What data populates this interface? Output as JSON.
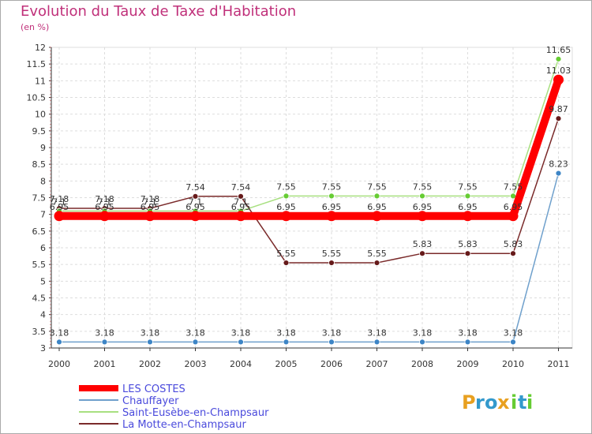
{
  "chart_data": {
    "type": "line",
    "title": "Evolution du Taux de Taxe d'Habitation",
    "subtitle": "(en %)",
    "categories": [
      "2000",
      "2001",
      "2002",
      "2003",
      "2004",
      "2005",
      "2006",
      "2007",
      "2008",
      "2009",
      "2010",
      "2011"
    ],
    "ylim": [
      3,
      12
    ],
    "y_ticks": [
      "3",
      "3.5",
      "4",
      "4.5",
      "5",
      "5.5",
      "6",
      "6.5",
      "7",
      "7.5",
      "8",
      "8.5",
      "9",
      "9.5",
      "10",
      "10.5",
      "11",
      "11.5",
      "12"
    ],
    "grid": true,
    "series": [
      {
        "name": "LES COSTES",
        "color": "#ff0000",
        "values": [
          6.95,
          6.95,
          6.95,
          6.95,
          6.95,
          6.95,
          6.95,
          6.95,
          6.95,
          6.95,
          6.95,
          11.03
        ],
        "labels": [
          "6.95",
          "6.95",
          "6.95",
          "6.95",
          "6.95",
          "6.95",
          "6.95",
          "6.95",
          "6.95",
          "6.95",
          "6.95",
          "11.03"
        ]
      },
      {
        "name": "Chauffayer",
        "color": "#6fa0cc",
        "marker_color": "#3d85c6",
        "values": [
          3.18,
          3.18,
          3.18,
          3.18,
          3.18,
          3.18,
          3.18,
          3.18,
          3.18,
          3.18,
          3.18,
          8.23
        ],
        "labels": [
          "3.18",
          "3.18",
          "3.18",
          "3.18",
          "3.18",
          "3.18",
          "3.18",
          "3.18",
          "3.18",
          "3.18",
          "3.18",
          "8.23"
        ]
      },
      {
        "name": "Saint-Eusèbe-en-Champsaur",
        "color": "#a8e080",
        "marker_color": "#66cc33",
        "values": [
          7.1,
          7.1,
          7.1,
          7.1,
          7.1,
          7.55,
          7.55,
          7.55,
          7.55,
          7.55,
          7.55,
          11.65
        ],
        "labels": [
          "7.1",
          "7.1",
          "7.1",
          "7.1",
          "7.1",
          "7.55",
          "7.55",
          "7.55",
          "7.55",
          "7.55",
          "7.55",
          "11.65"
        ]
      },
      {
        "name": "La Motte-en-Champsaur",
        "color": "#7a2a2a",
        "marker_color": "#661a1a",
        "values": [
          7.18,
          7.18,
          7.18,
          7.54,
          7.54,
          5.55,
          5.55,
          5.55,
          5.83,
          5.83,
          5.83,
          9.87
        ],
        "labels": [
          "7.18",
          "7.18",
          "7.18",
          "7.54",
          "7.54",
          "5.55",
          "5.55",
          "5.55",
          "5.83",
          "5.83",
          "5.83",
          "9.87"
        ]
      }
    ]
  },
  "branding": {
    "logo_text": "Proxiti",
    "letters": [
      "P",
      "r",
      "o",
      "x",
      "i",
      "t",
      "i"
    ],
    "colors": [
      "#e8a020",
      "#3399cc",
      "#3399cc",
      "#e8a020",
      "#66cc33",
      "#3399cc",
      "#66cc33"
    ]
  }
}
